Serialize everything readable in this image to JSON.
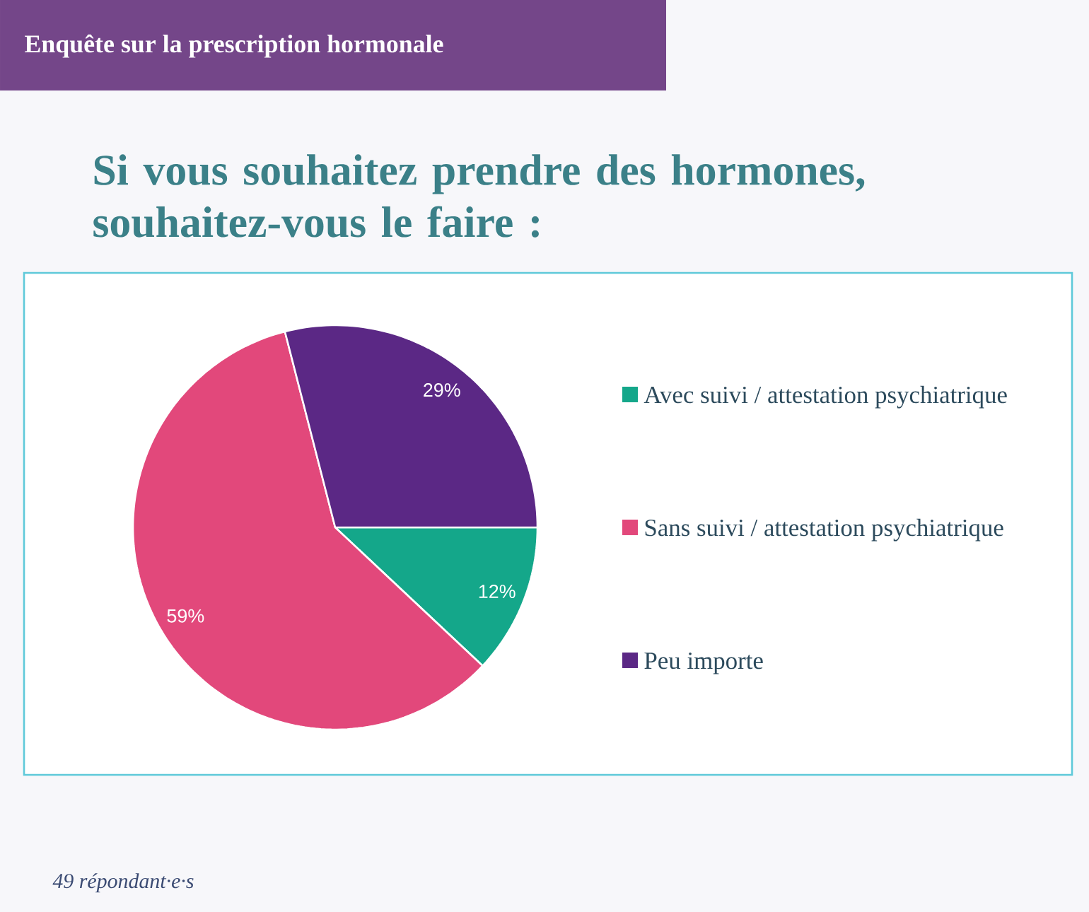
{
  "chart_data": {
    "type": "pie",
    "title": "Si vous souhaitez prendre des hormones, souhaitez-vous le faire :",
    "categories": [
      "Avec suivi / attestation psychiatrique",
      "Sans suivi / attestation psychiatrique",
      "Peu importe"
    ],
    "values": [
      12,
      59,
      29
    ],
    "colors": [
      "#14a78a",
      "#e2487b",
      "#5b2885"
    ],
    "value_labels": [
      "12%",
      "59%",
      "29%"
    ],
    "legend": "right",
    "annotations": [
      "Enquête sur la prescription hormonale",
      "49 répondant·e·s"
    ]
  }
}
